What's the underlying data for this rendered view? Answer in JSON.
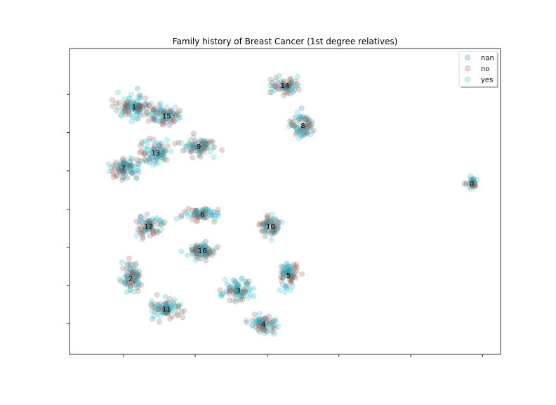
{
  "chart_data": {
    "type": "scatter",
    "title": "Family history of Breast Cancer (1st degree relatives)",
    "xlabel": "",
    "ylabel": "",
    "x_tick_labels": false,
    "y_tick_labels": false,
    "grid": false,
    "legend_position": "top-right",
    "xlim": [
      -60,
      60
    ],
    "ylim": [
      -50,
      50
    ],
    "series": [
      {
        "name": "nan",
        "color": "#1f77b4"
      },
      {
        "name": "no",
        "color": "#8c564b"
      },
      {
        "name": "yes",
        "color": "#17becf"
      }
    ],
    "clusters": [
      {
        "label": "0",
        "x": 52,
        "y": 6,
        "rx": 3,
        "ry": 3,
        "n": 30
      },
      {
        "label": "1",
        "x": -42,
        "y": 31,
        "rx": 8,
        "ry": 7,
        "n": 110
      },
      {
        "label": "2",
        "x": -43,
        "y": -25,
        "rx": 5,
        "ry": 9,
        "n": 80
      },
      {
        "label": "3",
        "x": -13,
        "y": -29,
        "rx": 7,
        "ry": 6,
        "n": 80
      },
      {
        "label": "4",
        "x": -6,
        "y": -40,
        "rx": 7,
        "ry": 5,
        "n": 70
      },
      {
        "label": "5",
        "x": 1,
        "y": -24,
        "rx": 5,
        "ry": 8,
        "n": 75
      },
      {
        "label": "6",
        "x": -23,
        "y": -4,
        "rx": 8,
        "ry": 4,
        "n": 70
      },
      {
        "label": "7",
        "x": -45,
        "y": 11,
        "rx": 7,
        "ry": 6,
        "n": 85
      },
      {
        "label": "8",
        "x": 5,
        "y": 25,
        "rx": 6,
        "ry": 7,
        "n": 70
      },
      {
        "label": "9",
        "x": -24,
        "y": 18,
        "rx": 9,
        "ry": 5,
        "n": 80
      },
      {
        "label": "10",
        "x": -4,
        "y": -8,
        "rx": 5,
        "ry": 6,
        "n": 70
      },
      {
        "label": "11",
        "x": -33,
        "y": -35,
        "rx": 8,
        "ry": 6,
        "n": 85
      },
      {
        "label": "12",
        "x": -38,
        "y": -8,
        "rx": 6,
        "ry": 7,
        "n": 75
      },
      {
        "label": "13",
        "x": -36,
        "y": 16,
        "rx": 7,
        "ry": 7,
        "n": 85
      },
      {
        "label": "14",
        "x": 0,
        "y": 38,
        "rx": 7,
        "ry": 5,
        "n": 70
      },
      {
        "label": "15",
        "x": -33,
        "y": 28,
        "rx": 7,
        "ry": 5,
        "n": 75
      },
      {
        "label": "16",
        "x": -23,
        "y": -16,
        "rx": 7,
        "ry": 5,
        "n": 80
      }
    ]
  }
}
